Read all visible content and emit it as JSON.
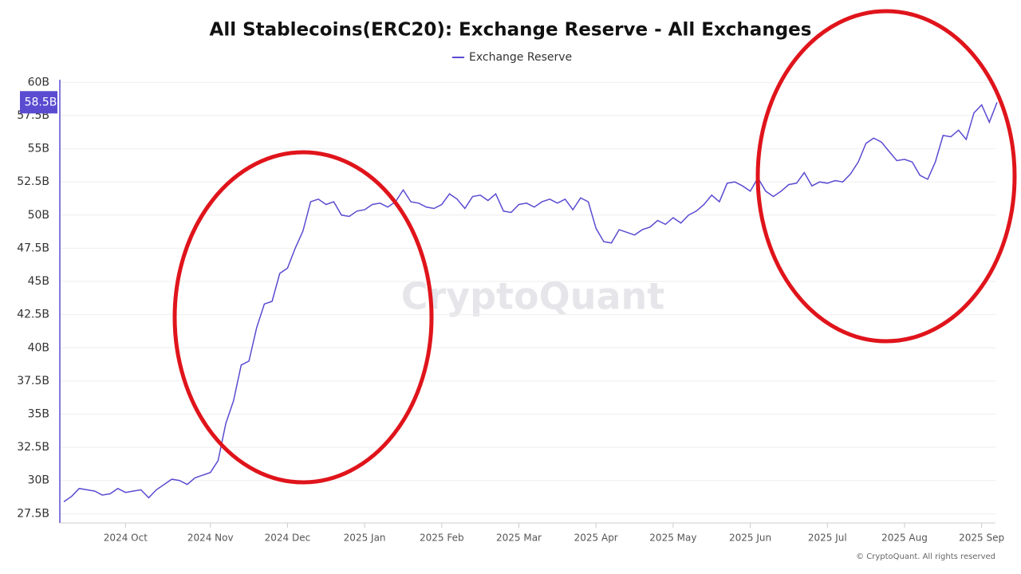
{
  "chart_data": {
    "type": "line",
    "title": "All Stablecoins(ERC20): Exchange Reserve - All Exchanges",
    "categories": [
      null,
      null,
      null,
      null,
      null,
      null,
      null,
      null,
      "2024 Oct",
      null,
      null,
      null,
      null,
      null,
      null,
      null,
      null,
      null,
      null,
      "2024 Nov",
      null,
      null,
      null,
      null,
      null,
      null,
      null,
      null,
      null,
      "2024 Dec",
      null,
      null,
      null,
      null,
      null,
      null,
      null,
      null,
      null,
      "2025 Jan",
      null,
      null,
      null,
      null,
      null,
      null,
      null,
      null,
      null,
      "2025 Feb",
      null,
      null,
      null,
      null,
      null,
      null,
      null,
      null,
      null,
      "2025 Mar",
      null,
      null,
      null,
      null,
      null,
      null,
      null,
      null,
      null,
      "2025 Apr",
      null,
      null,
      null,
      null,
      null,
      null,
      null,
      null,
      null,
      "2025 May",
      null,
      null,
      null,
      null,
      null,
      null,
      null,
      null,
      null,
      "2025 Jun",
      null,
      null,
      null,
      null,
      null,
      null,
      null,
      null,
      null,
      "2025 Jul",
      null,
      null,
      null,
      null,
      null,
      null,
      null,
      null,
      null,
      "2025 Aug",
      null,
      null,
      null,
      null,
      null,
      null,
      null,
      null,
      null,
      "2025 Sep",
      null,
      null
    ],
    "series": [
      {
        "name": "Exchange Reserve",
        "color": "#5a4bd1",
        "values": [
          28.4,
          28.8,
          29.4,
          29.3,
          29.2,
          28.9,
          29.0,
          29.4,
          29.1,
          29.2,
          29.3,
          28.7,
          29.3,
          29.7,
          30.1,
          30.0,
          29.7,
          30.2,
          30.4,
          30.6,
          31.5,
          34.3,
          36.0,
          38.7,
          39.0,
          41.5,
          43.3,
          43.5,
          45.6,
          46.0,
          47.5,
          48.8,
          51.0,
          51.2,
          50.8,
          51.0,
          50.0,
          49.9,
          50.3,
          50.4,
          50.8,
          50.9,
          50.6,
          51.0,
          51.9,
          51.0,
          50.9,
          50.6,
          50.5,
          50.8,
          51.6,
          51.2,
          50.5,
          51.4,
          51.5,
          51.1,
          51.6,
          50.3,
          50.2,
          50.8,
          50.9,
          50.6,
          51.0,
          51.2,
          50.9,
          51.2,
          50.4,
          51.3,
          51.0,
          49.0,
          48.0,
          47.9,
          48.9,
          48.7,
          48.5,
          48.9,
          49.1,
          49.6,
          49.3,
          49.8,
          49.4,
          50.0,
          50.3,
          50.8,
          51.5,
          51.0,
          52.4,
          52.5,
          52.2,
          51.8,
          52.8,
          51.8,
          51.4,
          51.8,
          52.3,
          52.4,
          53.2,
          52.2,
          52.5,
          52.4,
          52.6,
          52.5,
          53.1,
          54.0,
          55.4,
          55.8,
          55.5,
          54.8,
          54.1,
          54.2,
          54.0,
          53.0,
          52.7,
          54.0,
          56.0,
          55.9,
          56.4,
          55.7,
          57.7,
          58.3,
          57.0,
          58.5
        ]
      }
    ],
    "last_value_label": "58.5B",
    "ylim": [
      26.8,
      60.2
    ],
    "yticks": [
      {
        "value": 27.5,
        "label": "27.5B"
      },
      {
        "value": 30,
        "label": "30B"
      },
      {
        "value": 32.5,
        "label": "32.5B"
      },
      {
        "value": 35,
        "label": "35B"
      },
      {
        "value": 37.5,
        "label": "37.5B"
      },
      {
        "value": 40,
        "label": "40B"
      },
      {
        "value": 42.5,
        "label": "42.5B"
      },
      {
        "value": 45,
        "label": "45B"
      },
      {
        "value": 47.5,
        "label": "47.5B"
      },
      {
        "value": 50,
        "label": "50B"
      },
      {
        "value": 52.5,
        "label": "52.5B"
      },
      {
        "value": 55,
        "label": "55B"
      },
      {
        "value": 57.5,
        "label": "57.5B"
      },
      {
        "value": 60,
        "label": "60B"
      }
    ],
    "grid": true,
    "watermark": "CryptoQuant",
    "copyright": "© CryptoQuant. All rights reserved"
  }
}
